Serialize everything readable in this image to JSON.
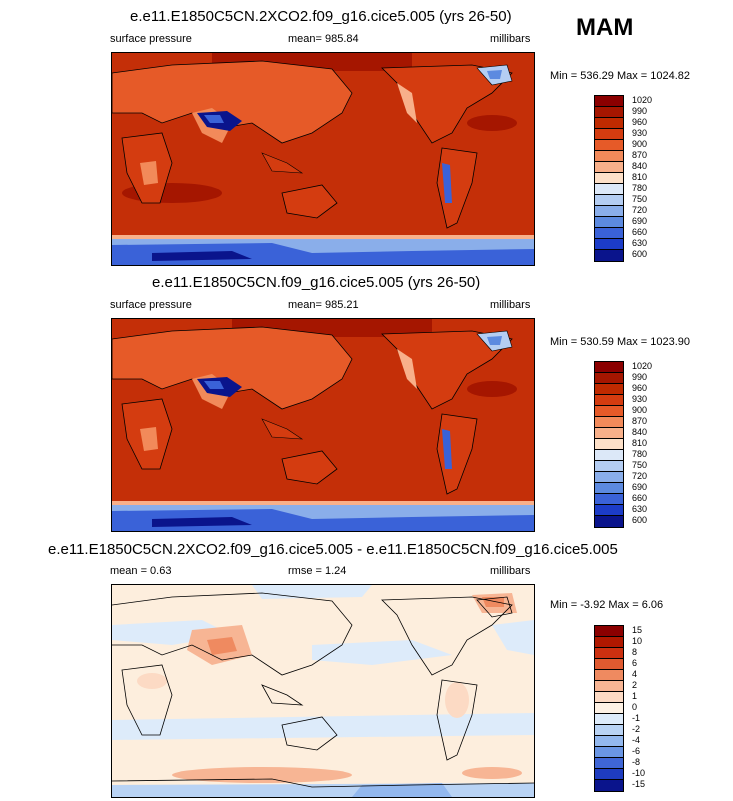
{
  "season": "MAM",
  "panels": [
    {
      "title": "e.e11.E1850C5CN.2XCO2.f09_g16.cice5.005 (yrs 26-50)",
      "left_label": "surface pressure",
      "center_label": "mean= 985.84",
      "right_label": "millibars",
      "minmax": "Min = 536.29 Max = 1024.82",
      "levels": [
        "1020",
        "990",
        "960",
        "930",
        "900",
        "870",
        "840",
        "810",
        "780",
        "750",
        "720",
        "690",
        "660",
        "630",
        "600"
      ]
    },
    {
      "title": "e.e11.E1850C5CN.f09_g16.cice5.005 (yrs 26-50)",
      "left_label": "surface pressure",
      "center_label": "mean= 985.21",
      "right_label": "millibars",
      "minmax": "Min = 530.59 Max = 1023.90",
      "levels": [
        "1020",
        "990",
        "960",
        "930",
        "900",
        "870",
        "840",
        "810",
        "780",
        "750",
        "720",
        "690",
        "660",
        "630",
        "600"
      ]
    },
    {
      "title": "e.e11.E1850C5CN.2XCO2.f09_g16.cice5.005 - e.e11.E1850C5CN.f09_g16.cice5.005",
      "left_label": "mean =   0.63",
      "center_label": "rmse =   1.24",
      "right_label": "millibars",
      "minmax": "Min =  -3.92 Max =   6.06",
      "levels": [
        "15",
        "10",
        "8",
        "6",
        "4",
        "2",
        "1",
        "0",
        "-1",
        "-2",
        "-4",
        "-6",
        "-8",
        "-10",
        "-15"
      ]
    }
  ],
  "colors": {
    "abs_scale": [
      "#8b0000",
      "#a51600",
      "#bf2a00",
      "#d43c10",
      "#e65a28",
      "#f28a5a",
      "#f8b08a",
      "#fde0c8",
      "#dce8f8",
      "#b4cdf2",
      "#8aaeea",
      "#5c8ae0",
      "#3a62d8",
      "#1c3cc8",
      "#0a148c"
    ],
    "diff_scale": [
      "#8b0000",
      "#b01800",
      "#cc3010",
      "#e05a30",
      "#ef8a60",
      "#f7b594",
      "#fcdac4",
      "#fdf1e4",
      "#ddebfa",
      "#b9d3f4",
      "#93b8ee",
      "#6a96e4",
      "#3f66d6",
      "#1e3cc0",
      "#0a148c"
    ],
    "ocean_abs": "#c42f08",
    "diff_bg": "#fdeedd"
  }
}
